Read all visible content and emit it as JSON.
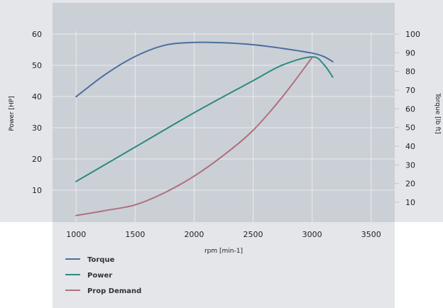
{
  "chart_data": {
    "type": "line",
    "title": "",
    "xlabel": "rpm [min-1]",
    "ylabel_left": "Power [HP]",
    "ylabel_right": "Torque [lb ft]",
    "xlim": [
      800,
      3700
    ],
    "ylim_left": [
      0,
      62
    ],
    "ylim_right": [
      0,
      102
    ],
    "x_ticks": [
      1000,
      1500,
      2000,
      2500,
      3000,
      3500
    ],
    "y_ticks_left": [
      10,
      20,
      30,
      40,
      50,
      60
    ],
    "y_ticks_right": [
      10,
      20,
      30,
      40,
      50,
      60,
      70,
      80,
      90,
      100
    ],
    "grid": true,
    "legend_position": "bottom-left",
    "series": [
      {
        "name": "Torque",
        "axis": "right",
        "color": "#4a6f9e",
        "x": [
          1000,
          1250,
          1500,
          1750,
          2000,
          2250,
          2500,
          2750,
          3000,
          3100,
          3175
        ],
        "y": [
          66.5,
          78.5,
          88,
          94,
          95.5,
          95.3,
          94.3,
          92.3,
          89.8,
          87.9,
          85.2
        ]
      },
      {
        "name": "Power",
        "axis": "left",
        "color": "#2e8a7e",
        "x": [
          1000,
          1500,
          2000,
          2500,
          2750,
          3000,
          3100,
          3175
        ],
        "y": [
          12.8,
          23.8,
          34.8,
          45.1,
          50.1,
          52.7,
          50.2,
          46.2
        ]
      },
      {
        "name": "Prop Demand",
        "axis": "left",
        "color": "#b0707a",
        "x": [
          1000,
          1250,
          1500,
          1750,
          2000,
          2250,
          2500,
          2750,
          3000
        ],
        "y": [
          1.9,
          3.5,
          5.3,
          9.2,
          14.5,
          21.2,
          29.2,
          40.0,
          52.5
        ]
      }
    ]
  }
}
